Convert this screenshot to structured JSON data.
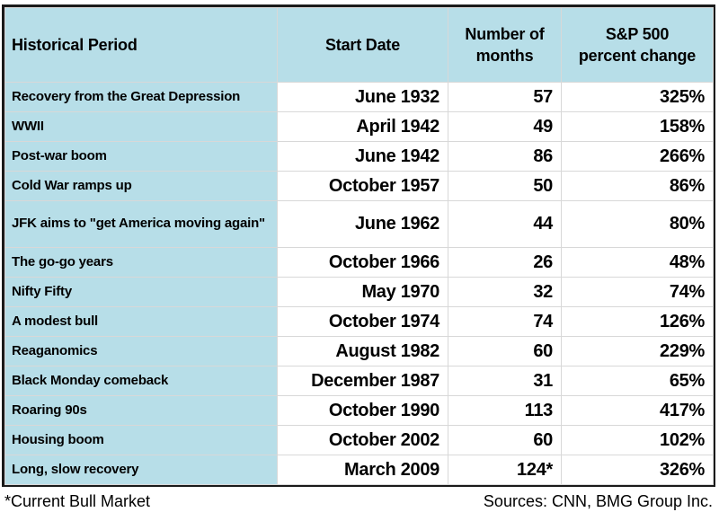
{
  "table": {
    "headers": {
      "period": "Historical Period",
      "start_date": "Start Date",
      "months": "Number of\nmonths",
      "change": "S&P 500\npercent change"
    },
    "rows": [
      {
        "period": "Recovery from the Great Depression",
        "start_date": "June 1932",
        "months": "57",
        "change": "325%"
      },
      {
        "period": "WWII",
        "start_date": "April 1942",
        "months": "49",
        "change": "158%"
      },
      {
        "period": "Post-war boom",
        "start_date": "June 1942",
        "months": "86",
        "change": "266%"
      },
      {
        "period": "Cold War ramps up",
        "start_date": "October 1957",
        "months": "50",
        "change": "86%"
      },
      {
        "period": "JFK aims to \"get America moving again\"",
        "start_date": "June 1962",
        "months": "44",
        "change": "80%",
        "tall": true
      },
      {
        "period": "The go-go years",
        "start_date": "October 1966",
        "months": "26",
        "change": "48%"
      },
      {
        "period": "Nifty Fifty",
        "start_date": "May 1970",
        "months": "32",
        "change": "74%"
      },
      {
        "period": "A modest bull",
        "start_date": "October 1974",
        "months": "74",
        "change": "126%"
      },
      {
        "period": "Reaganomics",
        "start_date": "August 1982",
        "months": "60",
        "change": "229%"
      },
      {
        "period": "Black Monday comeback",
        "start_date": "December 1987",
        "months": "31",
        "change": "65%"
      },
      {
        "period": "Roaring 90s",
        "start_date": "October 1990",
        "months": "113",
        "change": "417%"
      },
      {
        "period": "Housing boom",
        "start_date": "October 2002",
        "months": "60",
        "change": "102%"
      },
      {
        "period": "Long, slow recovery",
        "start_date": "March 2009",
        "months": "124*",
        "change": "326%"
      }
    ]
  },
  "footer": {
    "footnote": "*Current Bull Market",
    "sources": "Sources: CNN, BMG Group Inc."
  },
  "colors": {
    "header_bg": "#b7dee8",
    "grid": "#d8d8d8",
    "border": "#1a1a1a",
    "text": "#000000"
  },
  "chart_data": {
    "type": "table",
    "title": "",
    "columns": [
      "Historical Period",
      "Start Date",
      "Number of months",
      "S&P 500 percent change"
    ],
    "rows": [
      {
        "period": "Recovery from the Great Depression",
        "start_date": "June 1932",
        "months": 57,
        "change_pct": 325
      },
      {
        "period": "WWII",
        "start_date": "April 1942",
        "months": 49,
        "change_pct": 158
      },
      {
        "period": "Post-war boom",
        "start_date": "June 1942",
        "months": 86,
        "change_pct": 266
      },
      {
        "period": "Cold War ramps up",
        "start_date": "October 1957",
        "months": 50,
        "change_pct": 86
      },
      {
        "period": "JFK aims to \"get America moving again\"",
        "start_date": "June 1962",
        "months": 44,
        "change_pct": 80
      },
      {
        "period": "The go-go years",
        "start_date": "October 1966",
        "months": 26,
        "change_pct": 48
      },
      {
        "period": "Nifty Fifty",
        "start_date": "May 1970",
        "months": 32,
        "change_pct": 74
      },
      {
        "period": "A modest bull",
        "start_date": "October 1974",
        "months": 74,
        "change_pct": 126
      },
      {
        "period": "Reaganomics",
        "start_date": "August 1982",
        "months": 60,
        "change_pct": 229
      },
      {
        "period": "Black Monday comeback",
        "start_date": "December 1987",
        "months": 31,
        "change_pct": 65
      },
      {
        "period": "Roaring 90s",
        "start_date": "October 1990",
        "months": 113,
        "change_pct": 417
      },
      {
        "period": "Housing boom",
        "start_date": "October 2002",
        "months": 60,
        "change_pct": 102
      },
      {
        "period": "Long, slow recovery",
        "start_date": "March 2009",
        "months": 124,
        "months_note": "124*",
        "change_pct": 326
      }
    ],
    "footnote": "*Current Bull Market",
    "sources": "Sources: CNN, BMG Group Inc."
  }
}
